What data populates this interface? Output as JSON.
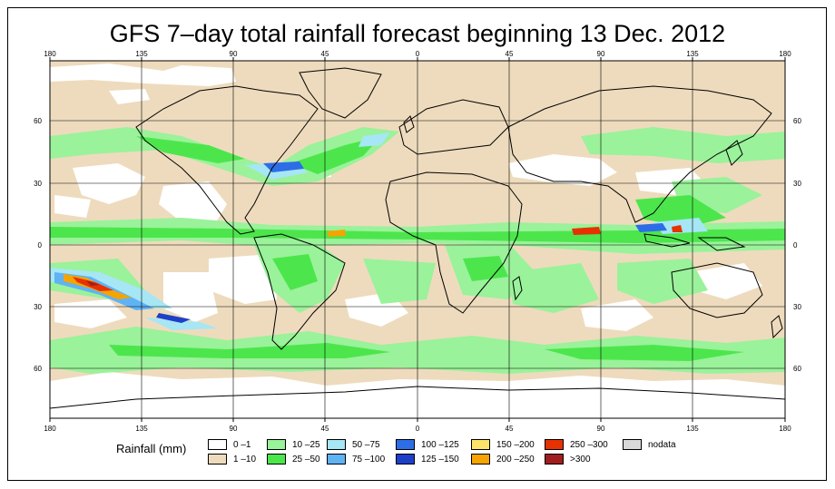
{
  "title": "GFS 7–day total rainfall forecast beginning 13 Dec. 2012",
  "axes": {
    "lon_labels": [
      "180",
      "135",
      "90",
      "45",
      "0",
      "45",
      "90",
      "135",
      "180"
    ],
    "lat_labels": [
      "60",
      "30",
      "0",
      "30",
      "60"
    ]
  },
  "legend": {
    "title": "Rainfall (mm)",
    "items": [
      {
        "label": "0 –1",
        "color": "#ffffff"
      },
      {
        "label": "1 –10",
        "color": "#eedbbd"
      },
      {
        "label": "10 –25",
        "color": "#9af29a"
      },
      {
        "label": "25 –50",
        "color": "#4ce64c"
      },
      {
        "label": "50 –75",
        "color": "#a6e6f5"
      },
      {
        "label": "75 –100",
        "color": "#5fb3f5"
      },
      {
        "label": "100 –125",
        "color": "#2d6ee6"
      },
      {
        "label": "125 –150",
        "color": "#1e3fc8"
      },
      {
        "label": "150 –200",
        "color": "#fde36b"
      },
      {
        "label": "200 –250",
        "color": "#f5a400"
      },
      {
        "label": "250 –300",
        "color": "#e63200"
      },
      {
        "label": ">300",
        "color": "#a01e1e"
      },
      {
        "label": "nodata",
        "color": "#d9d9d9"
      }
    ]
  },
  "colors": {
    "border": "#000000",
    "grid": "#000000"
  }
}
